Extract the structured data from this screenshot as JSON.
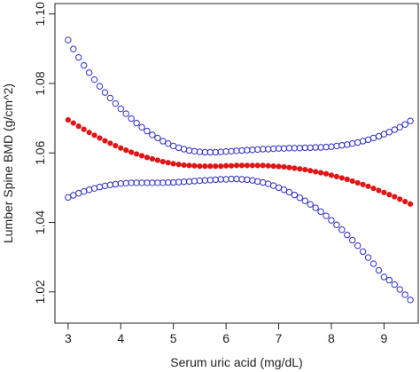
{
  "chart_data": {
    "type": "scatter",
    "xlabel": "Serum uric acid (mg/dL)",
    "ylabel": "Lumber Spine BMD (g/cm^2)",
    "xlim": [
      2.75,
      9.65
    ],
    "ylim": [
      1.011,
      1.103
    ],
    "x_ticks": [
      "3",
      "4",
      "5",
      "6",
      "7",
      "8",
      "9"
    ],
    "y_ticks": [
      "1.02",
      "1.04",
      "1.06",
      "1.08",
      "1.10"
    ],
    "grid": false,
    "legend": "none",
    "x": [
      3.0,
      3.1,
      3.2,
      3.3,
      3.4,
      3.5,
      3.6,
      3.7,
      3.8,
      3.9,
      4.0,
      4.1,
      4.2,
      4.3,
      4.4,
      4.5,
      4.6,
      4.7,
      4.8,
      4.9,
      5.0,
      5.1,
      5.2,
      5.3,
      5.4,
      5.5,
      5.6,
      5.7,
      5.8,
      5.9,
      6.0,
      6.1,
      6.2,
      6.3,
      6.4,
      6.5,
      6.6,
      6.7,
      6.8,
      6.9,
      7.0,
      7.1,
      7.2,
      7.3,
      7.4,
      7.5,
      7.6,
      7.7,
      7.8,
      7.9,
      8.0,
      8.1,
      8.2,
      8.3,
      8.4,
      8.5,
      8.6,
      8.7,
      8.8,
      8.9,
      9.0,
      9.1,
      9.2,
      9.3,
      9.4,
      9.5
    ],
    "series": [
      {
        "role": "upper",
        "color": "#2f2fc8",
        "marker": "open-circle",
        "values": [
          1.0925,
          1.0899,
          1.0875,
          1.0852,
          1.0831,
          1.0811,
          1.0792,
          1.0774,
          1.0758,
          1.0742,
          1.0727,
          1.0713,
          1.0699,
          1.0686,
          1.0674,
          1.0663,
          1.0652,
          1.0643,
          1.0634,
          1.0627,
          1.062,
          1.0615,
          1.0611,
          1.0607,
          1.0605,
          1.0603,
          1.0602,
          1.0602,
          1.0602,
          1.0603,
          1.0604,
          1.0605,
          1.0606,
          1.0607,
          1.0608,
          1.0609,
          1.061,
          1.0611,
          1.0611,
          1.0612,
          1.0613,
          1.0613,
          1.0614,
          1.0614,
          1.0614,
          1.0615,
          1.0615,
          1.0616,
          1.0616,
          1.0617,
          1.0618,
          1.062,
          1.0622,
          1.0624,
          1.0627,
          1.063,
          1.0634,
          1.0638,
          1.0643,
          1.0648,
          1.0654,
          1.066,
          1.0667,
          1.0674,
          1.0682,
          1.0692
        ]
      },
      {
        "role": "estimate",
        "color": "#e01515",
        "marker": "filled-circle",
        "values": [
          1.0695,
          1.0686,
          1.0677,
          1.0668,
          1.0659,
          1.0651,
          1.0643,
          1.0635,
          1.0628,
          1.0621,
          1.0614,
          1.0608,
          1.0602,
          1.0597,
          1.0592,
          1.0587,
          1.0583,
          1.0579,
          1.0575,
          1.0572,
          1.0569,
          1.0567,
          1.0565,
          1.0564,
          1.0563,
          1.0562,
          1.0562,
          1.0562,
          1.0562,
          1.0562,
          1.0563,
          1.0563,
          1.0564,
          1.0564,
          1.0564,
          1.0564,
          1.0564,
          1.0564,
          1.0563,
          1.0562,
          1.0561,
          1.056,
          1.0558,
          1.0556,
          1.0554,
          1.0552,
          1.0549,
          1.0546,
          1.0543,
          1.054,
          1.0536,
          1.0532,
          1.0528,
          1.0524,
          1.0519,
          1.0514,
          1.0509,
          1.0504,
          1.0498,
          1.0492,
          1.0486,
          1.048,
          1.0474,
          1.0467,
          1.046,
          1.0453
        ]
      },
      {
        "role": "lower",
        "color": "#2f2fc8",
        "marker": "open-circle",
        "values": [
          1.0472,
          1.0478,
          1.0484,
          1.0489,
          1.0494,
          1.0498,
          1.0502,
          1.0505,
          1.0508,
          1.051,
          1.0512,
          1.0513,
          1.0514,
          1.0514,
          1.0514,
          1.0514,
          1.0514,
          1.0514,
          1.0514,
          1.0515,
          1.0515,
          1.0516,
          1.0517,
          1.0518,
          1.0519,
          1.052,
          1.0521,
          1.0522,
          1.0523,
          1.0524,
          1.0524,
          1.0525,
          1.0525,
          1.0524,
          1.0523,
          1.0521,
          1.0518,
          1.0515,
          1.0511,
          1.0506,
          1.05,
          1.0494,
          1.0487,
          1.0479,
          1.0471,
          1.0462,
          1.0452,
          1.0442,
          1.0431,
          1.0419,
          1.0406,
          1.0393,
          1.0379,
          1.0364,
          1.0349,
          1.0333,
          1.0316,
          1.0299,
          1.0281,
          1.0262,
          1.0243,
          1.0234,
          1.0221,
          1.0207,
          1.0192,
          1.0177
        ]
      }
    ]
  }
}
